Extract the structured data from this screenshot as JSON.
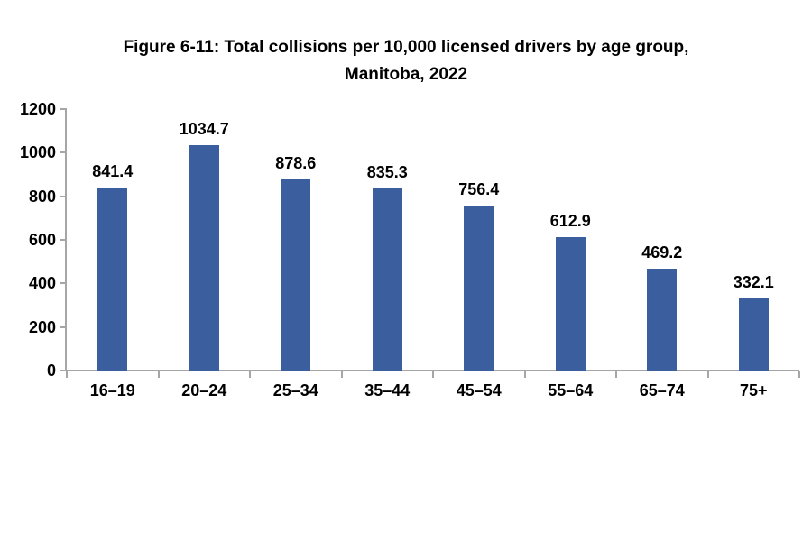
{
  "chart_data": {
    "type": "bar",
    "title": "Figure 6-11: Total collisions per 10,000 licensed drivers by age group, Manitoba, 2022",
    "title_lines": [
      "Figure 6-11: Total collisions per 10,000 licensed drivers by age group,",
      "Manitoba, 2022"
    ],
    "categories": [
      "16–19",
      "20–24",
      "25–34",
      "35–44",
      "45–54",
      "55–64",
      "65–74",
      "75+"
    ],
    "values": [
      841.4,
      1034.7,
      878.6,
      835.3,
      756.4,
      612.9,
      469.2,
      332.1
    ],
    "value_labels": [
      "841.4",
      "1034.7",
      "878.6",
      "835.3",
      "756.4",
      "612.9",
      "469.2",
      "332.1"
    ],
    "series_name": "Total collisions per 10,000 licensed drivers",
    "xlabel": "",
    "ylabel": "",
    "ylim": [
      0,
      1200
    ],
    "yticks": [
      0,
      200,
      400,
      600,
      800,
      1000,
      1200
    ],
    "grid": false,
    "legend_position": "none",
    "colors": {
      "bar": "#3B5F9E",
      "axis": "#A6A6A6",
      "text": "#000000",
      "background": "#FFFFFF"
    }
  }
}
